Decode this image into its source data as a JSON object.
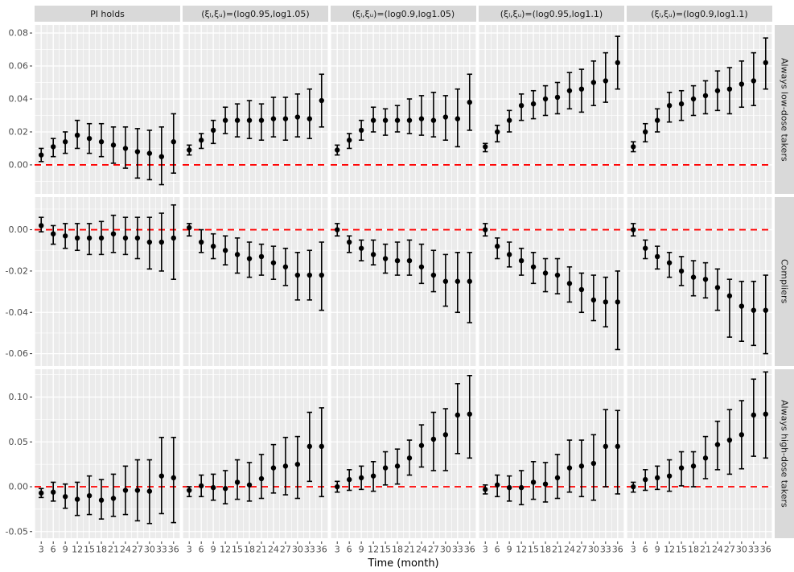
{
  "figure": {
    "xlabel": "Time (month)",
    "col_headers": [
      "PI holds",
      "(ξₗ,ξᵤ)=(log0.95,log1.05)",
      "(ξₗ,ξᵤ)=(log0.9,log1.05)",
      "(ξₗ,ξᵤ)=(log0.95,log1.1)",
      "(ξₗ,ξᵤ)=(log0.9,log1.1)"
    ],
    "row_headers": [
      "Always low-dose takers",
      "Compliers",
      "Always high-dose takers"
    ],
    "colors": {
      "panel_bg": "#EBEBEB",
      "strip_bg": "#D9D9D9",
      "grid": "#FFFFFF",
      "ref_line": "#FF0000",
      "point": "#000000",
      "tick_text": "#4D4D4D",
      "tick_mark": "#333333"
    }
  },
  "chart_data": {
    "type": "scatter",
    "style": "point estimates with error bars, 3x5 facet grid, dashed red reference line at y=0",
    "title": "",
    "xlabel": "Time (month)",
    "x": [
      3,
      6,
      9,
      12,
      15,
      18,
      21,
      24,
      27,
      30,
      33,
      36
    ],
    "xlim": [
      1.35,
      37.65
    ],
    "x_tick_labels": [
      "3",
      "6",
      "9",
      "12",
      "15",
      "18",
      "21",
      "24",
      "27",
      "30",
      "33",
      "36"
    ],
    "ref_y": 0,
    "grid": "on",
    "rows": [
      {
        "label": "Always low-dose takers",
        "ylim": [
          -0.0176,
          0.0849
        ],
        "yticks": [
          0.0,
          0.02,
          0.04,
          0.06,
          0.08
        ],
        "ytick_labels": [
          "0.00",
          "0.02",
          "0.04",
          "0.06",
          "0.08"
        ],
        "panels": [
          {
            "col": "PI holds",
            "est": [
              0.006,
              0.011,
              0.014,
              0.018,
              0.016,
              0.014,
              0.012,
              0.01,
              0.008,
              0.007,
              0.005,
              0.014
            ],
            "lo": [
              0.002,
              0.005,
              0.007,
              0.01,
              0.007,
              0.005,
              0.001,
              -0.002,
              -0.008,
              -0.009,
              -0.012,
              -0.005
            ],
            "hi": [
              0.01,
              0.016,
              0.02,
              0.027,
              0.025,
              0.025,
              0.023,
              0.023,
              0.022,
              0.021,
              0.023,
              0.031
            ]
          },
          {
            "col": "(ξₗ,ξᵤ)=(log0.95,log1.05)",
            "est": [
              0.009,
              0.015,
              0.021,
              0.027,
              0.027,
              0.027,
              0.027,
              0.028,
              0.028,
              0.029,
              0.028,
              0.039
            ],
            "lo": [
              0.006,
              0.01,
              0.013,
              0.019,
              0.017,
              0.016,
              0.015,
              0.017,
              0.015,
              0.017,
              0.016,
              0.023
            ],
            "hi": [
              0.012,
              0.019,
              0.027,
              0.035,
              0.037,
              0.039,
              0.037,
              0.041,
              0.041,
              0.043,
              0.046,
              0.055
            ]
          },
          {
            "col": "(ξₗ,ξᵤ)=(log0.9,log1.05)",
            "est": [
              0.009,
              0.015,
              0.021,
              0.027,
              0.027,
              0.027,
              0.027,
              0.028,
              0.027,
              0.029,
              0.028,
              0.038
            ],
            "lo": [
              0.006,
              0.01,
              0.015,
              0.02,
              0.018,
              0.02,
              0.019,
              0.018,
              0.017,
              0.015,
              0.011,
              0.021
            ],
            "hi": [
              0.012,
              0.019,
              0.027,
              0.035,
              0.034,
              0.036,
              0.04,
              0.042,
              0.044,
              0.042,
              0.046,
              0.055
            ]
          },
          {
            "col": "(ξₗ,ξᵤ)=(log0.95,log1.1)",
            "est": [
              0.011,
              0.02,
              0.027,
              0.036,
              0.037,
              0.04,
              0.041,
              0.045,
              0.046,
              0.05,
              0.051,
              0.062
            ],
            "lo": [
              0.008,
              0.014,
              0.02,
              0.027,
              0.028,
              0.03,
              0.031,
              0.034,
              0.032,
              0.036,
              0.038,
              0.046
            ],
            "hi": [
              0.013,
              0.024,
              0.033,
              0.043,
              0.045,
              0.048,
              0.05,
              0.056,
              0.058,
              0.063,
              0.068,
              0.078
            ]
          },
          {
            "col": "(ξₗ,ξᵤ)=(log0.9,log1.1)",
            "est": [
              0.011,
              0.02,
              0.027,
              0.036,
              0.037,
              0.04,
              0.042,
              0.045,
              0.046,
              0.049,
              0.051,
              0.062
            ],
            "lo": [
              0.008,
              0.014,
              0.02,
              0.026,
              0.027,
              0.03,
              0.031,
              0.033,
              0.031,
              0.035,
              0.036,
              0.046
            ],
            "hi": [
              0.014,
              0.025,
              0.034,
              0.044,
              0.045,
              0.048,
              0.051,
              0.057,
              0.059,
              0.063,
              0.068,
              0.077
            ]
          }
        ]
      },
      {
        "label": "Compliers",
        "ylim": [
          -0.066,
          0.0158
        ],
        "yticks": [
          -0.06,
          -0.04,
          -0.02,
          0.0
        ],
        "ytick_labels": [
          "-0.06",
          "-0.04",
          "-0.02",
          "0.00"
        ],
        "panels": [
          {
            "col": "PI holds",
            "est": [
              0.002,
              -0.002,
              -0.003,
              -0.004,
              -0.004,
              -0.004,
              -0.002,
              -0.004,
              -0.004,
              -0.006,
              -0.006,
              -0.004
            ],
            "lo": [
              -0.001,
              -0.007,
              -0.009,
              -0.01,
              -0.012,
              -0.012,
              -0.011,
              -0.012,
              -0.014,
              -0.019,
              -0.02,
              -0.024
            ],
            "hi": [
              0.006,
              0.002,
              0.003,
              0.003,
              0.003,
              0.004,
              0.007,
              0.006,
              0.006,
              0.006,
              0.008,
              0.012
            ]
          },
          {
            "col": "(ξₗ,ξᵤ)=(log0.95,log1.05)",
            "est": [
              0.001,
              -0.006,
              -0.008,
              -0.01,
              -0.012,
              -0.014,
              -0.013,
              -0.016,
              -0.018,
              -0.022,
              -0.022,
              -0.022
            ],
            "lo": [
              -0.003,
              -0.011,
              -0.014,
              -0.017,
              -0.021,
              -0.023,
              -0.022,
              -0.024,
              -0.027,
              -0.034,
              -0.034,
              -0.039
            ],
            "hi": [
              0.003,
              0.0,
              -0.002,
              -0.003,
              -0.004,
              -0.006,
              -0.007,
              -0.008,
              -0.009,
              -0.011,
              -0.01,
              -0.006
            ]
          },
          {
            "col": "(ξₗ,ξᵤ)=(log0.9,log1.05)",
            "est": [
              0.0,
              -0.006,
              -0.009,
              -0.012,
              -0.014,
              -0.015,
              -0.015,
              -0.018,
              -0.022,
              -0.025,
              -0.025,
              -0.025
            ],
            "lo": [
              -0.003,
              -0.011,
              -0.015,
              -0.017,
              -0.021,
              -0.022,
              -0.022,
              -0.026,
              -0.03,
              -0.037,
              -0.04,
              -0.045
            ],
            "hi": [
              0.003,
              -0.003,
              -0.005,
              -0.005,
              -0.007,
              -0.006,
              -0.005,
              -0.007,
              -0.01,
              -0.012,
              -0.011,
              -0.011
            ]
          },
          {
            "col": "(ξₗ,ξᵤ)=(log0.95,log1.1)",
            "est": [
              0.0,
              -0.008,
              -0.012,
              -0.015,
              -0.018,
              -0.021,
              -0.022,
              -0.026,
              -0.029,
              -0.034,
              -0.035,
              -0.035
            ],
            "lo": [
              -0.003,
              -0.014,
              -0.018,
              -0.022,
              -0.026,
              -0.03,
              -0.031,
              -0.035,
              -0.04,
              -0.044,
              -0.047,
              -0.058
            ],
            "hi": [
              0.003,
              -0.004,
              -0.006,
              -0.009,
              -0.011,
              -0.014,
              -0.014,
              -0.018,
              -0.021,
              -0.022,
              -0.023,
              -0.02
            ]
          },
          {
            "col": "(ξₗ,ξᵤ)=(log0.9,log1.1)",
            "est": [
              0.0,
              -0.009,
              -0.013,
              -0.016,
              -0.02,
              -0.023,
              -0.024,
              -0.028,
              -0.032,
              -0.037,
              -0.039,
              -0.039
            ],
            "lo": [
              -0.003,
              -0.014,
              -0.019,
              -0.023,
              -0.027,
              -0.032,
              -0.033,
              -0.039,
              -0.052,
              -0.054,
              -0.056,
              -0.06
            ],
            "hi": [
              0.003,
              -0.005,
              -0.008,
              -0.011,
              -0.013,
              -0.015,
              -0.016,
              -0.019,
              -0.024,
              -0.025,
              -0.025,
              -0.022
            ]
          }
        ]
      },
      {
        "label": "Always high-dose takers",
        "ylim": [
          -0.0574,
          0.131
        ],
        "yticks": [
          -0.05,
          0.0,
          0.05,
          0.1
        ],
        "ytick_labels": [
          "-0.05",
          "0.00",
          "0.05",
          "0.10"
        ],
        "panels": [
          {
            "col": "PI holds",
            "est": [
              -0.007,
              -0.006,
              -0.011,
              -0.014,
              -0.01,
              -0.015,
              -0.013,
              -0.004,
              -0.004,
              -0.005,
              0.012,
              0.01
            ],
            "lo": [
              -0.012,
              -0.016,
              -0.024,
              -0.032,
              -0.031,
              -0.036,
              -0.033,
              -0.031,
              -0.038,
              -0.041,
              -0.03,
              -0.04
            ],
            "hi": [
              -0.002,
              0.005,
              0.003,
              0.005,
              0.012,
              0.008,
              0.014,
              0.023,
              0.03,
              0.03,
              0.055,
              0.055
            ]
          },
          {
            "col": "(ξₗ,ξᵤ)=(log0.95,log1.05)",
            "est": [
              -0.004,
              0.001,
              -0.001,
              -0.002,
              0.005,
              0.002,
              0.009,
              0.021,
              0.023,
              0.025,
              0.045,
              0.045
            ],
            "lo": [
              -0.011,
              -0.011,
              -0.015,
              -0.019,
              -0.014,
              -0.016,
              -0.013,
              -0.007,
              -0.009,
              -0.013,
              0.006,
              -0.011
            ],
            "hi": [
              0.0,
              0.013,
              0.014,
              0.018,
              0.03,
              0.027,
              0.036,
              0.047,
              0.055,
              0.056,
              0.083,
              0.088
            ]
          },
          {
            "col": "(ξₗ,ξᵤ)=(log0.9,log1.05)",
            "est": [
              0.0,
              0.008,
              0.01,
              0.012,
              0.021,
              0.023,
              0.032,
              0.046,
              0.053,
              0.058,
              0.08,
              0.081
            ],
            "lo": [
              -0.006,
              -0.004,
              -0.003,
              -0.005,
              0.002,
              0.003,
              0.013,
              0.022,
              0.018,
              0.018,
              0.037,
              0.032
            ],
            "hi": [
              0.006,
              0.019,
              0.023,
              0.028,
              0.039,
              0.042,
              0.052,
              0.069,
              0.083,
              0.087,
              0.115,
              0.124
            ]
          },
          {
            "col": "(ξₗ,ξᵤ)=(log0.95,log1.1)",
            "est": [
              -0.003,
              0.002,
              -0.001,
              -0.001,
              0.005,
              0.003,
              0.01,
              0.021,
              0.023,
              0.026,
              0.045,
              0.045
            ],
            "lo": [
              -0.008,
              -0.011,
              -0.016,
              -0.02,
              -0.014,
              -0.017,
              -0.013,
              -0.006,
              -0.011,
              -0.015,
              0.0,
              -0.008
            ],
            "hi": [
              0.002,
              0.013,
              0.012,
              0.018,
              0.028,
              0.027,
              0.036,
              0.052,
              0.052,
              0.058,
              0.086,
              0.085
            ]
          },
          {
            "col": "(ξₗ,ξᵤ)=(log0.9,log1.1)",
            "est": [
              0.0,
              0.008,
              0.01,
              0.012,
              0.021,
              0.023,
              0.032,
              0.047,
              0.052,
              0.058,
              0.08,
              0.081
            ],
            "lo": [
              -0.006,
              -0.004,
              -0.003,
              -0.005,
              0.001,
              0.0,
              0.009,
              0.019,
              0.014,
              0.02,
              0.034,
              0.032
            ],
            "hi": [
              0.005,
              0.019,
              0.023,
              0.03,
              0.039,
              0.039,
              0.056,
              0.073,
              0.086,
              0.096,
              0.12,
              0.128
            ]
          }
        ]
      }
    ]
  }
}
